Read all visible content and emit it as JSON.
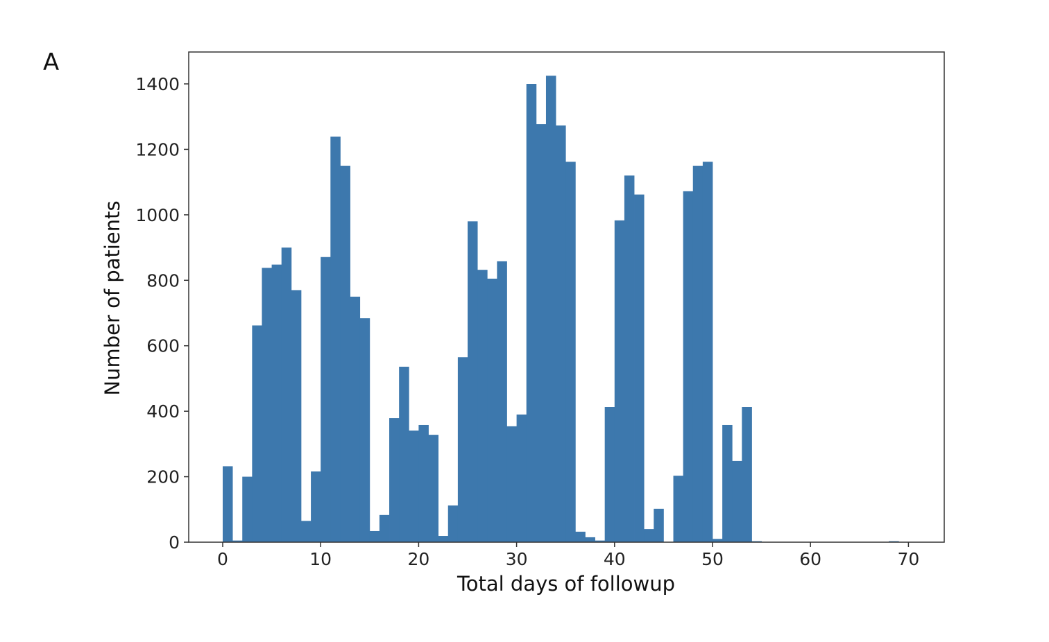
{
  "figure": {
    "panel_label": "A"
  },
  "chart_data": {
    "type": "bar",
    "subtype": "histogram",
    "title": "",
    "xlabel": "Total days of followup",
    "ylabel": "Number of patients",
    "xlim": [
      -3.5,
      72.3
    ],
    "ylim": [
      0,
      1500
    ],
    "xticks": [
      0,
      10,
      20,
      30,
      40,
      50,
      60,
      70
    ],
    "yticks": [
      0,
      200,
      400,
      600,
      800,
      1000,
      1200,
      1400
    ],
    "grid": false,
    "legend": null,
    "bar_color": "#3d78ad",
    "bin_width": 1,
    "bin_starts": [
      0,
      1,
      2,
      3,
      4,
      5,
      6,
      7,
      8,
      9,
      10,
      11,
      12,
      13,
      14,
      15,
      16,
      17,
      18,
      19,
      20,
      21,
      22,
      23,
      24,
      25,
      26,
      27,
      28,
      29,
      30,
      31,
      32,
      33,
      34,
      35,
      36,
      37,
      38,
      39,
      40,
      41,
      42,
      43,
      44,
      45,
      46,
      47,
      48,
      49,
      50,
      51,
      52,
      53,
      54,
      55,
      56,
      57,
      58,
      59,
      60,
      61,
      62,
      63,
      64,
      65,
      66,
      67,
      68
    ],
    "values": [
      232,
      5,
      200,
      662,
      838,
      848,
      900,
      770,
      65,
      216,
      871,
      1239,
      1150,
      750,
      684,
      34,
      83,
      379,
      536,
      341,
      358,
      328,
      19,
      112,
      565,
      980,
      832,
      805,
      858,
      354,
      390,
      1400,
      1277,
      1425,
      1273,
      1162,
      32,
      15,
      5,
      413,
      983,
      1120,
      1062,
      40,
      102,
      0,
      203,
      1072,
      1150,
      1162,
      10,
      358,
      248,
      413,
      3,
      0,
      0,
      0,
      0,
      0,
      0,
      0,
      0,
      0,
      0,
      0,
      0,
      0,
      3
    ]
  }
}
